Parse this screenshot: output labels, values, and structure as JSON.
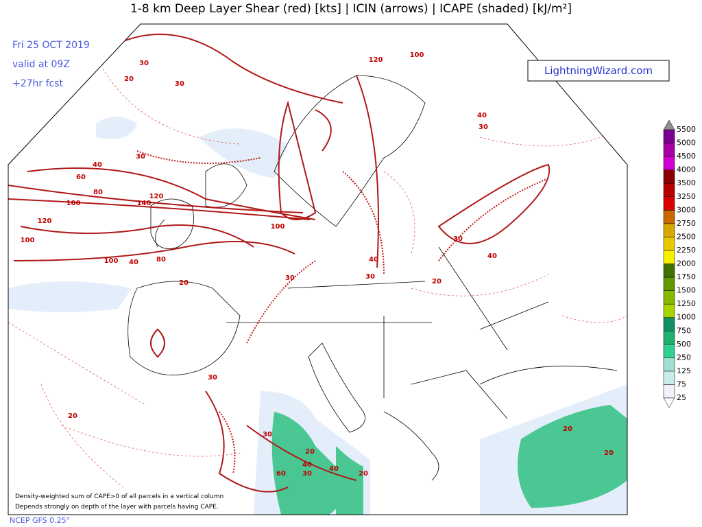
{
  "header": {
    "title": "1-8 km Deep Layer Shear (red) [kts] | ICIN (arrows) | ICAPE (shaded) [kJ/m²]",
    "date_lines": [
      "Fri 25 OCT 2019",
      "valid at 09Z",
      "+27hr fcst"
    ],
    "logo": "LightningWizard.com"
  },
  "colorbar": {
    "levels": [
      25,
      75,
      125,
      250,
      500,
      750,
      1000,
      1250,
      1500,
      1750,
      2000,
      2250,
      2500,
      2750,
      3000,
      3250,
      3500,
      4000,
      4500,
      5000,
      5500
    ],
    "colors": [
      "#f2f2fa",
      "#c8ecec",
      "#a0e0d0",
      "#30d090",
      "#20b070",
      "#109060",
      "#a8d400",
      "#88b800",
      "#609800",
      "#407000",
      "#f4f000",
      "#e8c800",
      "#d8a800",
      "#c86800",
      "#d80000",
      "#b80000",
      "#880000",
      "#d000d0",
      "#a800a8",
      "#7a0090"
    ]
  },
  "map": {
    "contour_labels": [
      30,
      30,
      20,
      40,
      30,
      60,
      80,
      100,
      140,
      120,
      120,
      100,
      100,
      40,
      80,
      100,
      100,
      120,
      40,
      30,
      40,
      30,
      30,
      20,
      40,
      30,
      20,
      30,
      40,
      20,
      60,
      30,
      40,
      20,
      20,
      20,
      30,
      20
    ]
  },
  "footer": {
    "notes": [
      "Density-weighted sum of CAPE>0 of all parcels in a vertical column",
      "Depends strongly on depth of the layer with parcels having CAPE."
    ],
    "source": "NCEP GFS 0.25°"
  }
}
